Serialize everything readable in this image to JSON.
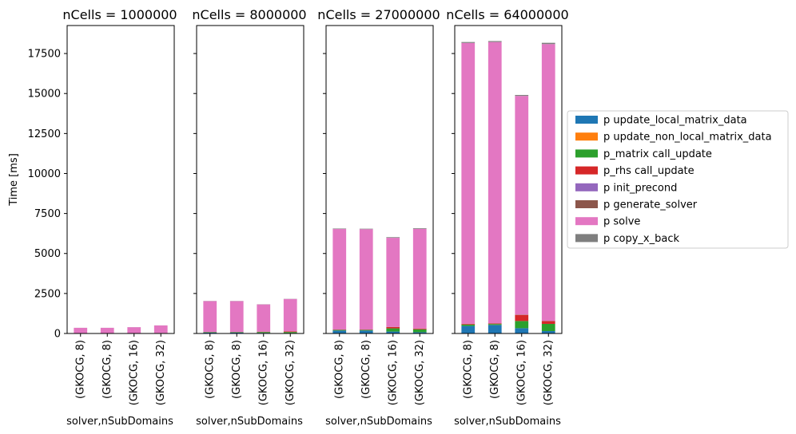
{
  "chart_data": {
    "type": "bar",
    "stacked": true,
    "ylabel": "Time [ms]",
    "ylim": [
      0,
      19250
    ],
    "yticks": [
      0,
      2500,
      5000,
      7500,
      10000,
      12500,
      15000,
      17500
    ],
    "xlabel": "solver,nSubDomains",
    "categories": [
      "(GKOCG, 8)",
      "(GKOCG, 8)",
      "(GKOCG, 16)",
      "(GKOCG, 32)"
    ],
    "legend_position": "right",
    "series_names": [
      "p update_local_matrix_data",
      "p update_non_local_matrix_data",
      "p_matrix call_update",
      "p_rhs call_update",
      "p init_precond",
      "p generate_solver",
      "p solve",
      "p copy_x_back"
    ],
    "series_colors": [
      "#1f77b4",
      "#ff7f0e",
      "#2ca02c",
      "#d62728",
      "#9467bd",
      "#8c564b",
      "#e377c2",
      "#7f7f7f"
    ],
    "panels": [
      {
        "title": "nCells = 1000000",
        "stacks": [
          [
            5,
            0,
            3,
            2,
            0,
            2,
            340,
            3
          ],
          [
            5,
            0,
            3,
            2,
            0,
            2,
            340,
            3
          ],
          [
            8,
            0,
            8,
            4,
            0,
            2,
            370,
            3
          ],
          [
            10,
            0,
            12,
            8,
            0,
            2,
            470,
            3
          ]
        ]
      },
      {
        "title": "nCells = 8000000",
        "stacks": [
          [
            50,
            0,
            25,
            10,
            0,
            5,
            1930,
            10
          ],
          [
            50,
            0,
            25,
            10,
            0,
            5,
            1930,
            10
          ],
          [
            40,
            0,
            50,
            20,
            0,
            5,
            1700,
            10
          ],
          [
            30,
            0,
            60,
            40,
            0,
            5,
            2020,
            10
          ]
        ]
      },
      {
        "title": "nCells = 27000000",
        "stacks": [
          [
            180,
            0,
            40,
            20,
            0,
            10,
            6280,
            30
          ],
          [
            180,
            0,
            40,
            20,
            0,
            10,
            6270,
            30
          ],
          [
            120,
            0,
            200,
            80,
            0,
            10,
            5570,
            40
          ],
          [
            80,
            0,
            180,
            40,
            0,
            10,
            6230,
            40
          ]
        ]
      },
      {
        "title": "nCells = 64000000",
        "stacks": [
          [
            470,
            0,
            80,
            40,
            0,
            20,
            17550,
            60
          ],
          [
            530,
            0,
            60,
            30,
            0,
            20,
            17580,
            60
          ],
          [
            330,
            0,
            450,
            380,
            0,
            20,
            13670,
            60
          ],
          [
            150,
            0,
            450,
            170,
            0,
            20,
            17300,
            80
          ]
        ]
      }
    ]
  }
}
